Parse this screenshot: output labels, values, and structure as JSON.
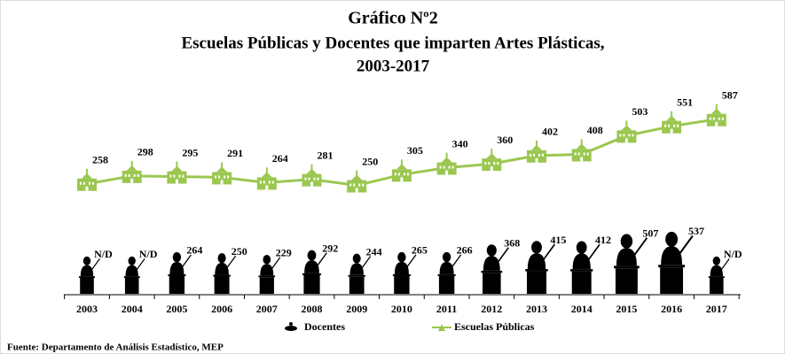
{
  "chart_data": {
    "type": "line",
    "title": "Gráfico Nº2",
    "subtitle": [
      "Escuelas Públicas y Docentes que imparten Artes Plásticas,",
      "2003-2017"
    ],
    "categories": [
      "2003",
      "2004",
      "2005",
      "2006",
      "2007",
      "2008",
      "2009",
      "2010",
      "2011",
      "2012",
      "2013",
      "2014",
      "2015",
      "2016",
      "2017"
    ],
    "series": [
      {
        "name": "Docentes",
        "color": "#000000",
        "mark": "pictogram",
        "values": [
          null,
          null,
          264,
          250,
          229,
          292,
          244,
          265,
          266,
          368,
          415,
          412,
          507,
          537,
          null
        ],
        "value_labels": [
          "N/D",
          "N/D",
          "264",
          "250",
          "229",
          "292",
          "244",
          "265",
          "266",
          "368",
          "415",
          "412",
          "507",
          "537",
          "N/D"
        ]
      },
      {
        "name": "Escuelas Públicas",
        "color": "#9bc750",
        "mark": "line",
        "values": [
          258,
          298,
          295,
          291,
          264,
          281,
          250,
          305,
          340,
          360,
          402,
          408,
          503,
          551,
          587
        ]
      }
    ],
    "source": "Fuente: Departamento de Análisis Estadístico, MEP"
  }
}
